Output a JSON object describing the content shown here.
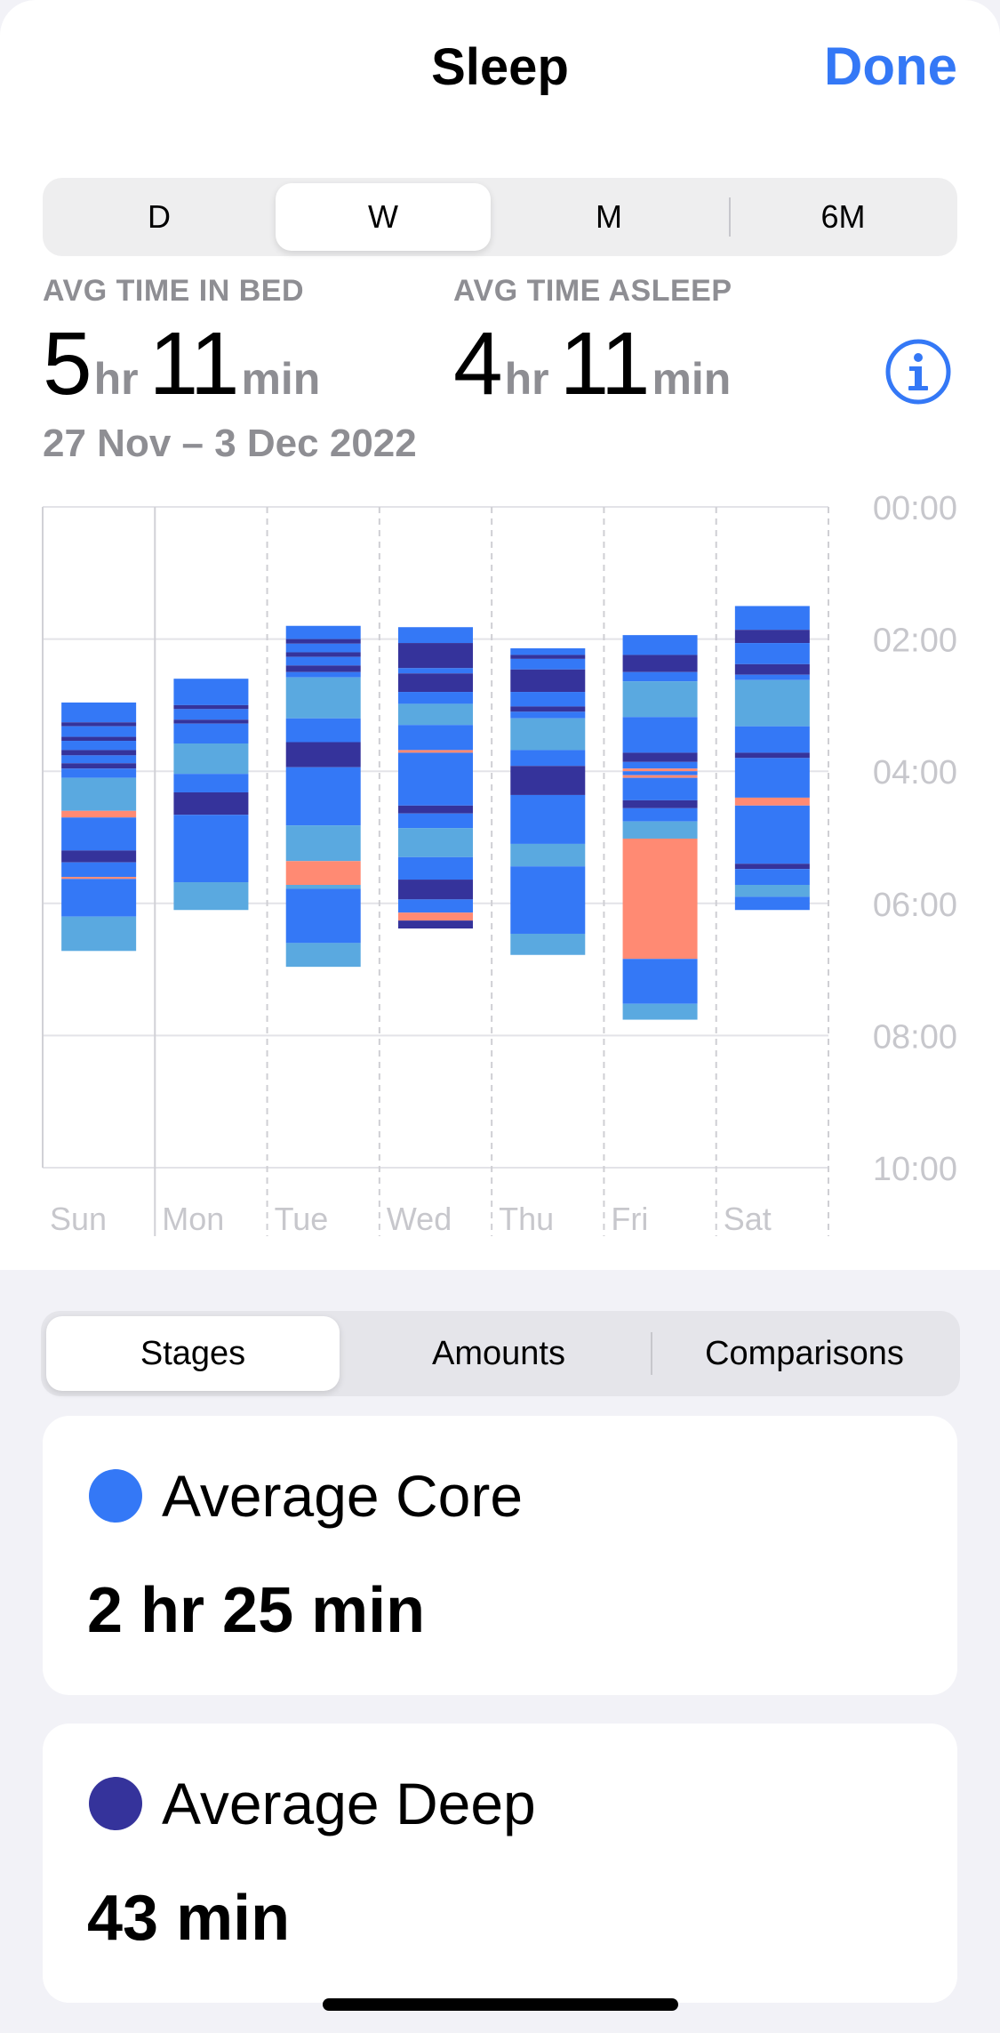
{
  "nav": {
    "title": "Sleep",
    "done_label": "Done"
  },
  "period_tabs": {
    "items": [
      "D",
      "W",
      "M",
      "6M"
    ],
    "selected": "W"
  },
  "stats": {
    "time_in_bed": {
      "label": "AVG TIME IN BED",
      "hours": "5",
      "hr_unit": "hr",
      "minutes": "11",
      "min_unit": "min"
    },
    "time_asleep": {
      "label": "AVG TIME ASLEEP",
      "hours": "4",
      "hr_unit": "hr",
      "minutes": "11",
      "min_unit": "min"
    },
    "date_range": "27 Nov – 3 Dec 2022"
  },
  "icons": {
    "info": "info-circle-icon"
  },
  "colors": {
    "core": "#3478f6",
    "deep": "#35339b",
    "rem": "#5aa9e0",
    "awake": "#ff8a73",
    "accent": "#3478f6"
  },
  "chart_data": {
    "type": "bar",
    "subtype": "sleep-stage-timeline",
    "categories": [
      "Sun",
      "Mon",
      "Tue",
      "Wed",
      "Thu",
      "Fri",
      "Sat"
    ],
    "y_ticks": [
      "00:00",
      "02:00",
      "04:00",
      "06:00",
      "08:00",
      "10:00"
    ],
    "y_range_hours": [
      0,
      10
    ],
    "series_names": [
      "Core",
      "Deep",
      "REM",
      "Awake"
    ],
    "days": [
      {
        "day": "Sun",
        "segments": [
          {
            "stage": "core",
            "start": 2.96,
            "end": 3.26
          },
          {
            "stage": "deep",
            "start": 3.26,
            "end": 3.32
          },
          {
            "stage": "core",
            "start": 3.32,
            "end": 3.48
          },
          {
            "stage": "deep",
            "start": 3.48,
            "end": 3.54
          },
          {
            "stage": "core",
            "start": 3.54,
            "end": 3.68
          },
          {
            "stage": "deep",
            "start": 3.68,
            "end": 3.76
          },
          {
            "stage": "core",
            "start": 3.76,
            "end": 3.88
          },
          {
            "stage": "deep",
            "start": 3.88,
            "end": 3.96
          },
          {
            "stage": "core",
            "start": 3.96,
            "end": 4.1
          },
          {
            "stage": "rem",
            "start": 4.1,
            "end": 4.6
          },
          {
            "stage": "awake",
            "start": 4.6,
            "end": 4.7
          },
          {
            "stage": "core",
            "start": 4.7,
            "end": 5.2
          },
          {
            "stage": "deep",
            "start": 5.2,
            "end": 5.38
          },
          {
            "stage": "core",
            "start": 5.38,
            "end": 5.6
          },
          {
            "stage": "awake",
            "start": 5.6,
            "end": 5.63
          },
          {
            "stage": "core",
            "start": 5.63,
            "end": 6.2
          },
          {
            "stage": "rem",
            "start": 6.2,
            "end": 6.72
          }
        ]
      },
      {
        "day": "Mon",
        "segments": [
          {
            "stage": "core",
            "start": 2.6,
            "end": 3.0
          },
          {
            "stage": "deep",
            "start": 3.0,
            "end": 3.06
          },
          {
            "stage": "core",
            "start": 3.06,
            "end": 3.22
          },
          {
            "stage": "deep",
            "start": 3.22,
            "end": 3.28
          },
          {
            "stage": "core",
            "start": 3.28,
            "end": 3.58
          },
          {
            "stage": "rem",
            "start": 3.58,
            "end": 4.04
          },
          {
            "stage": "core",
            "start": 4.04,
            "end": 4.32
          },
          {
            "stage": "deep",
            "start": 4.32,
            "end": 4.66
          },
          {
            "stage": "core",
            "start": 4.66,
            "end": 5.68
          },
          {
            "stage": "rem",
            "start": 5.68,
            "end": 6.1
          }
        ]
      },
      {
        "day": "Tue",
        "segments": [
          {
            "stage": "core",
            "start": 1.8,
            "end": 2.0
          },
          {
            "stage": "deep",
            "start": 2.0,
            "end": 2.07
          },
          {
            "stage": "core",
            "start": 2.07,
            "end": 2.2
          },
          {
            "stage": "deep",
            "start": 2.2,
            "end": 2.27
          },
          {
            "stage": "core",
            "start": 2.27,
            "end": 2.4
          },
          {
            "stage": "deep",
            "start": 2.4,
            "end": 2.5
          },
          {
            "stage": "core",
            "start": 2.5,
            "end": 2.58
          },
          {
            "stage": "rem",
            "start": 2.58,
            "end": 3.2
          },
          {
            "stage": "core",
            "start": 3.2,
            "end": 3.56
          },
          {
            "stage": "deep",
            "start": 3.56,
            "end": 3.94
          },
          {
            "stage": "core",
            "start": 3.94,
            "end": 4.82
          },
          {
            "stage": "rem",
            "start": 4.82,
            "end": 5.36
          },
          {
            "stage": "awake",
            "start": 5.36,
            "end": 5.72
          },
          {
            "stage": "rem",
            "start": 5.72,
            "end": 5.78
          },
          {
            "stage": "core",
            "start": 5.78,
            "end": 6.6
          },
          {
            "stage": "rem",
            "start": 6.6,
            "end": 6.96
          }
        ]
      },
      {
        "day": "Wed",
        "segments": [
          {
            "stage": "core",
            "start": 1.82,
            "end": 2.06
          },
          {
            "stage": "deep",
            "start": 2.06,
            "end": 2.44
          },
          {
            "stage": "core",
            "start": 2.44,
            "end": 2.52
          },
          {
            "stage": "deep",
            "start": 2.52,
            "end": 2.8
          },
          {
            "stage": "core",
            "start": 2.8,
            "end": 2.98
          },
          {
            "stage": "rem",
            "start": 2.98,
            "end": 3.3
          },
          {
            "stage": "core",
            "start": 3.3,
            "end": 3.68
          },
          {
            "stage": "awake",
            "start": 3.68,
            "end": 3.72
          },
          {
            "stage": "core",
            "start": 3.72,
            "end": 4.52
          },
          {
            "stage": "deep",
            "start": 4.52,
            "end": 4.64
          },
          {
            "stage": "core",
            "start": 4.64,
            "end": 4.86
          },
          {
            "stage": "rem",
            "start": 4.86,
            "end": 5.3
          },
          {
            "stage": "core",
            "start": 5.3,
            "end": 5.64
          },
          {
            "stage": "deep",
            "start": 5.64,
            "end": 5.94
          },
          {
            "stage": "core",
            "start": 5.94,
            "end": 6.14
          },
          {
            "stage": "awake",
            "start": 6.14,
            "end": 6.26
          },
          {
            "stage": "deep",
            "start": 6.26,
            "end": 6.38
          }
        ]
      },
      {
        "day": "Thu",
        "segments": [
          {
            "stage": "core",
            "start": 2.14,
            "end": 2.24
          },
          {
            "stage": "deep",
            "start": 2.24,
            "end": 2.3
          },
          {
            "stage": "core",
            "start": 2.3,
            "end": 2.46
          },
          {
            "stage": "deep",
            "start": 2.46,
            "end": 2.8
          },
          {
            "stage": "core",
            "start": 2.8,
            "end": 3.02
          },
          {
            "stage": "deep",
            "start": 3.02,
            "end": 3.1
          },
          {
            "stage": "core",
            "start": 3.1,
            "end": 3.2
          },
          {
            "stage": "rem",
            "start": 3.2,
            "end": 3.68
          },
          {
            "stage": "core",
            "start": 3.68,
            "end": 3.92
          },
          {
            "stage": "deep",
            "start": 3.92,
            "end": 4.36
          },
          {
            "stage": "core",
            "start": 4.36,
            "end": 5.1
          },
          {
            "stage": "rem",
            "start": 5.1,
            "end": 5.44
          },
          {
            "stage": "core",
            "start": 5.44,
            "end": 6.46
          },
          {
            "stage": "rem",
            "start": 6.46,
            "end": 6.78
          }
        ]
      },
      {
        "day": "Fri",
        "segments": [
          {
            "stage": "core",
            "start": 1.94,
            "end": 2.24
          },
          {
            "stage": "deep",
            "start": 2.24,
            "end": 2.5
          },
          {
            "stage": "core",
            "start": 2.5,
            "end": 2.64
          },
          {
            "stage": "rem",
            "start": 2.64,
            "end": 3.18
          },
          {
            "stage": "core",
            "start": 3.18,
            "end": 3.72
          },
          {
            "stage": "deep",
            "start": 3.72,
            "end": 3.86
          },
          {
            "stage": "core",
            "start": 3.86,
            "end": 3.96
          },
          {
            "stage": "awake",
            "start": 3.96,
            "end": 4.0
          },
          {
            "stage": "core",
            "start": 4.0,
            "end": 4.06
          },
          {
            "stage": "awake",
            "start": 4.06,
            "end": 4.1
          },
          {
            "stage": "core",
            "start": 4.1,
            "end": 4.44
          },
          {
            "stage": "deep",
            "start": 4.44,
            "end": 4.56
          },
          {
            "stage": "core",
            "start": 4.56,
            "end": 4.76
          },
          {
            "stage": "rem",
            "start": 4.76,
            "end": 5.02
          },
          {
            "stage": "awake",
            "start": 5.02,
            "end": 6.84
          },
          {
            "stage": "core",
            "start": 6.84,
            "end": 7.52
          },
          {
            "stage": "rem",
            "start": 7.52,
            "end": 7.76
          }
        ]
      },
      {
        "day": "Sat",
        "segments": [
          {
            "stage": "core",
            "start": 1.5,
            "end": 1.86
          },
          {
            "stage": "deep",
            "start": 1.86,
            "end": 2.06
          },
          {
            "stage": "core",
            "start": 2.06,
            "end": 2.38
          },
          {
            "stage": "deep",
            "start": 2.38,
            "end": 2.54
          },
          {
            "stage": "core",
            "start": 2.54,
            "end": 2.62
          },
          {
            "stage": "rem",
            "start": 2.62,
            "end": 3.32
          },
          {
            "stage": "core",
            "start": 3.32,
            "end": 3.72
          },
          {
            "stage": "deep",
            "start": 3.72,
            "end": 3.8
          },
          {
            "stage": "core",
            "start": 3.8,
            "end": 4.4
          },
          {
            "stage": "awake",
            "start": 4.4,
            "end": 4.52
          },
          {
            "stage": "core",
            "start": 4.52,
            "end": 5.4
          },
          {
            "stage": "deep",
            "start": 5.4,
            "end": 5.48
          },
          {
            "stage": "core",
            "start": 5.48,
            "end": 5.72
          },
          {
            "stage": "rem",
            "start": 5.72,
            "end": 5.9
          },
          {
            "stage": "core",
            "start": 5.9,
            "end": 6.1
          }
        ]
      }
    ]
  },
  "view_tabs": {
    "items": [
      "Stages",
      "Amounts",
      "Comparisons"
    ],
    "selected": "Stages"
  },
  "cards": [
    {
      "name": "Average Core",
      "value": "2 hr 25 min",
      "color": "#3478f6"
    },
    {
      "name": "Average Deep",
      "value": "43 min",
      "color": "#35339b"
    }
  ]
}
